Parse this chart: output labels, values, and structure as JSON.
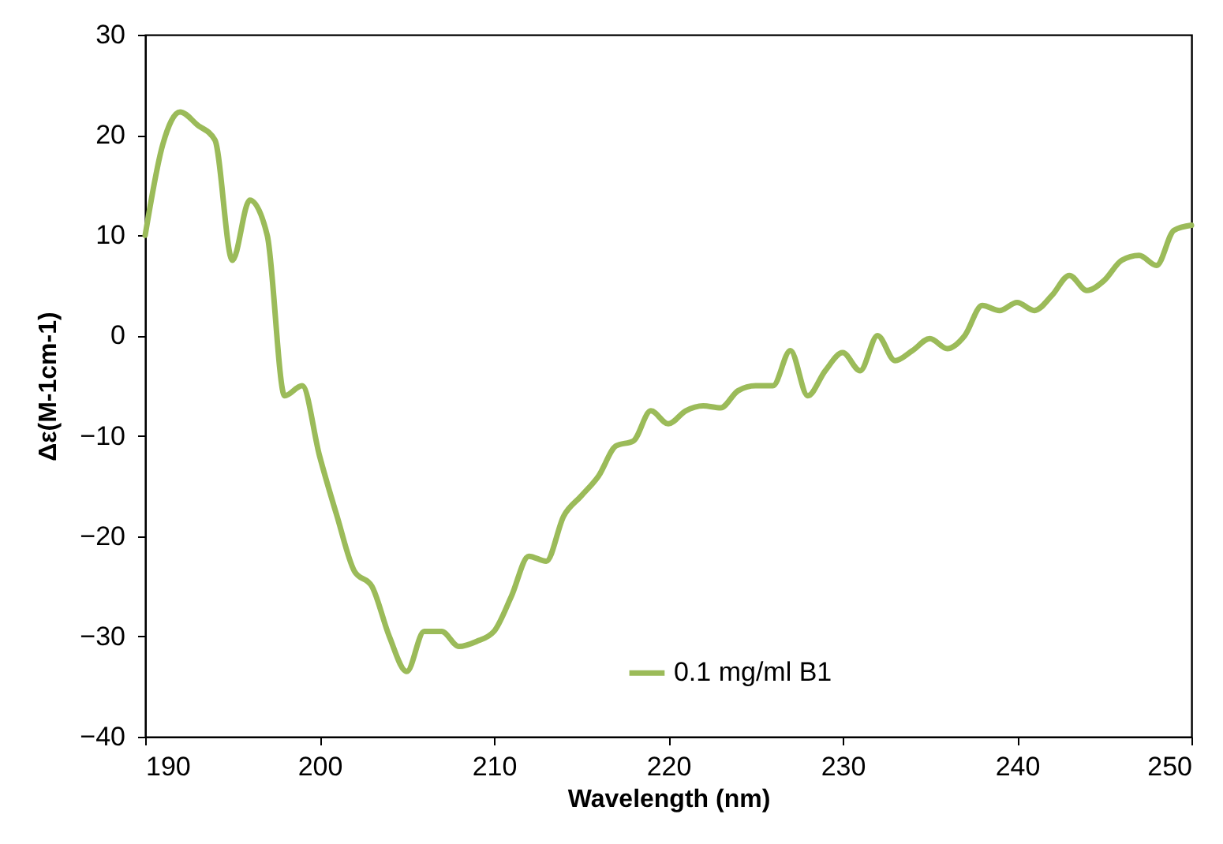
{
  "chart_data": {
    "type": "line",
    "xlabel": "Wavelength (nm)",
    "ylabel": "Δε(M-1cm-1)",
    "x": [
      190,
      191,
      192,
      193,
      194,
      195,
      196,
      197,
      198,
      199,
      200,
      201,
      202,
      203,
      204,
      205,
      206,
      207,
      208,
      209,
      210,
      211,
      212,
      213,
      214,
      215,
      216,
      217,
      218,
      219,
      220,
      221,
      222,
      223,
      224,
      225,
      226,
      227,
      228,
      229,
      230,
      231,
      232,
      233,
      234,
      235,
      236,
      237,
      238,
      239,
      240,
      241,
      242,
      243,
      244,
      245,
      246,
      247,
      248,
      249,
      250
    ],
    "series": [
      {
        "name": "0.1 mg/ml B1",
        "color": "#9bbb59",
        "values": [
          10,
          19,
          22.3,
          21,
          19.5,
          7.5,
          13.5,
          10,
          -6,
          -5,
          -12,
          -18,
          -23.5,
          -25,
          -30,
          -33.5,
          -29.5,
          -29.5,
          -31,
          -30.5,
          -29.5,
          -26,
          -22,
          -22.5,
          -18,
          -16,
          -14,
          -11,
          -10.5,
          -7.5,
          -8.8,
          -7.5,
          -7,
          -7.2,
          -5.5,
          -5,
          -5,
          -1.5,
          -6,
          -3.5,
          -1.7,
          -3.5,
          0,
          -2.5,
          -1.5,
          -0.3,
          -1.3,
          0,
          3,
          2.5,
          3.3,
          2.5,
          4,
          6,
          4.5,
          5.5,
          7.5,
          8,
          7,
          10.5,
          11
        ]
      }
    ],
    "xlim": [
      190,
      250
    ],
    "xticks": [
      190,
      200,
      210,
      220,
      230,
      240,
      250
    ],
    "ylim": [
      -40,
      30
    ],
    "yticks": [
      -40,
      -30,
      -20,
      -10,
      0,
      10,
      20,
      30
    ],
    "grid": false,
    "legend": "bottom",
    "marker": "none",
    "line_style": "solid"
  }
}
